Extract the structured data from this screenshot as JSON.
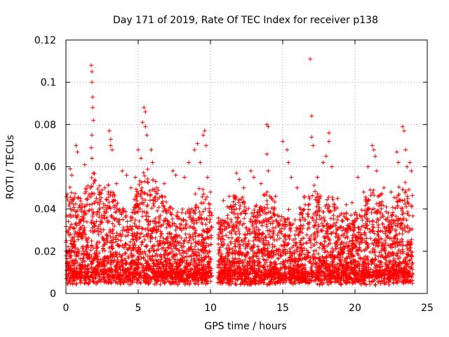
{
  "chart_data": {
    "type": "scatter",
    "title": "Day 171 of 2019, Rate Of TEC Index for receiver p138",
    "xlabel": "GPS time / hours",
    "ylabel": "ROTI / TECUs",
    "xlim": [
      0,
      25
    ],
    "ylim": [
      0,
      0.12
    ],
    "x_ticks": [
      0,
      5,
      10,
      15,
      20,
      25
    ],
    "x_tick_labels": [
      "0",
      "5",
      "10",
      "15",
      "20",
      "25"
    ],
    "y_ticks": [
      0,
      0.02,
      0.04,
      0.06,
      0.08,
      0.1,
      0.12
    ],
    "y_tick_labels": [
      "0",
      "0.02",
      "0.04",
      "0.06",
      "0.08",
      "0.1",
      "0.12"
    ],
    "grid": true,
    "marker": "+",
    "color": "#ff0000",
    "data_gap_hours": [
      10.1,
      10.5
    ],
    "peaks": [
      {
        "x": 0.3,
        "y": 0.059
      },
      {
        "x": 0.4,
        "y": 0.056
      },
      {
        "x": 0.7,
        "y": 0.07
      },
      {
        "x": 0.8,
        "y": 0.067
      },
      {
        "x": 1.0,
        "y": 0.045
      },
      {
        "x": 1.3,
        "y": 0.061
      },
      {
        "x": 1.6,
        "y": 0.047
      },
      {
        "x": 1.75,
        "y": 0.108
      },
      {
        "x": 1.8,
        "y": 0.105
      },
      {
        "x": 1.8,
        "y": 0.1
      },
      {
        "x": 1.85,
        "y": 0.093
      },
      {
        "x": 1.85,
        "y": 0.088
      },
      {
        "x": 1.9,
        "y": 0.082
      },
      {
        "x": 1.8,
        "y": 0.075
      },
      {
        "x": 1.75,
        "y": 0.069
      },
      {
        "x": 1.8,
        "y": 0.064
      },
      {
        "x": 1.9,
        "y": 0.057
      },
      {
        "x": 2.3,
        "y": 0.048
      },
      {
        "x": 2.7,
        "y": 0.05
      },
      {
        "x": 3.0,
        "y": 0.077
      },
      {
        "x": 3.1,
        "y": 0.073
      },
      {
        "x": 3.1,
        "y": 0.07
      },
      {
        "x": 3.2,
        "y": 0.068
      },
      {
        "x": 3.5,
        "y": 0.052
      },
      {
        "x": 3.9,
        "y": 0.058
      },
      {
        "x": 4.2,
        "y": 0.056
      },
      {
        "x": 4.5,
        "y": 0.05
      },
      {
        "x": 4.8,
        "y": 0.055
      },
      {
        "x": 5.0,
        "y": 0.068
      },
      {
        "x": 5.2,
        "y": 0.064
      },
      {
        "x": 5.3,
        "y": 0.081
      },
      {
        "x": 5.4,
        "y": 0.088
      },
      {
        "x": 5.5,
        "y": 0.086
      },
      {
        "x": 5.5,
        "y": 0.079
      },
      {
        "x": 5.6,
        "y": 0.075
      },
      {
        "x": 5.9,
        "y": 0.068
      },
      {
        "x": 6.0,
        "y": 0.062
      },
      {
        "x": 6.3,
        "y": 0.05
      },
      {
        "x": 6.8,
        "y": 0.052
      },
      {
        "x": 7.4,
        "y": 0.058
      },
      {
        "x": 7.6,
        "y": 0.056
      },
      {
        "x": 8.2,
        "y": 0.055
      },
      {
        "x": 8.5,
        "y": 0.062
      },
      {
        "x": 8.9,
        "y": 0.068
      },
      {
        "x": 9.1,
        "y": 0.071
      },
      {
        "x": 9.3,
        "y": 0.062
      },
      {
        "x": 9.5,
        "y": 0.075
      },
      {
        "x": 9.6,
        "y": 0.077
      },
      {
        "x": 9.7,
        "y": 0.07
      },
      {
        "x": 9.8,
        "y": 0.055
      },
      {
        "x": 10.0,
        "y": 0.048
      },
      {
        "x": 10.9,
        "y": 0.044
      },
      {
        "x": 11.3,
        "y": 0.046
      },
      {
        "x": 11.8,
        "y": 0.057
      },
      {
        "x": 12.0,
        "y": 0.054
      },
      {
        "x": 12.3,
        "y": 0.05
      },
      {
        "x": 12.8,
        "y": 0.058
      },
      {
        "x": 13.0,
        "y": 0.055
      },
      {
        "x": 13.5,
        "y": 0.052
      },
      {
        "x": 13.9,
        "y": 0.08
      },
      {
        "x": 14.0,
        "y": 0.079
      },
      {
        "x": 13.9,
        "y": 0.066
      },
      {
        "x": 14.0,
        "y": 0.058
      },
      {
        "x": 14.5,
        "y": 0.046
      },
      {
        "x": 15.0,
        "y": 0.072
      },
      {
        "x": 15.3,
        "y": 0.068
      },
      {
        "x": 15.4,
        "y": 0.062
      },
      {
        "x": 15.6,
        "y": 0.055
      },
      {
        "x": 16.0,
        "y": 0.05
      },
      {
        "x": 16.5,
        "y": 0.046
      },
      {
        "x": 16.9,
        "y": 0.111
      },
      {
        "x": 17.0,
        "y": 0.084
      },
      {
        "x": 17.0,
        "y": 0.074
      },
      {
        "x": 17.1,
        "y": 0.07
      },
      {
        "x": 17.4,
        "y": 0.055
      },
      {
        "x": 17.8,
        "y": 0.062
      },
      {
        "x": 18.0,
        "y": 0.065
      },
      {
        "x": 18.2,
        "y": 0.076
      },
      {
        "x": 18.2,
        "y": 0.072
      },
      {
        "x": 18.4,
        "y": 0.06
      },
      {
        "x": 18.8,
        "y": 0.045
      },
      {
        "x": 19.4,
        "y": 0.042
      },
      {
        "x": 19.8,
        "y": 0.043
      },
      {
        "x": 20.2,
        "y": 0.055
      },
      {
        "x": 20.6,
        "y": 0.048
      },
      {
        "x": 20.9,
        "y": 0.06
      },
      {
        "x": 21.2,
        "y": 0.07
      },
      {
        "x": 21.3,
        "y": 0.068
      },
      {
        "x": 21.4,
        "y": 0.065
      },
      {
        "x": 21.5,
        "y": 0.058
      },
      {
        "x": 22.0,
        "y": 0.05
      },
      {
        "x": 22.5,
        "y": 0.048
      },
      {
        "x": 22.9,
        "y": 0.067
      },
      {
        "x": 23.0,
        "y": 0.062
      },
      {
        "x": 23.3,
        "y": 0.079
      },
      {
        "x": 23.4,
        "y": 0.077
      },
      {
        "x": 23.5,
        "y": 0.068
      },
      {
        "x": 23.6,
        "y": 0.06
      },
      {
        "x": 23.8,
        "y": 0.062
      },
      {
        "x": 23.9,
        "y": 0.058
      }
    ]
  }
}
